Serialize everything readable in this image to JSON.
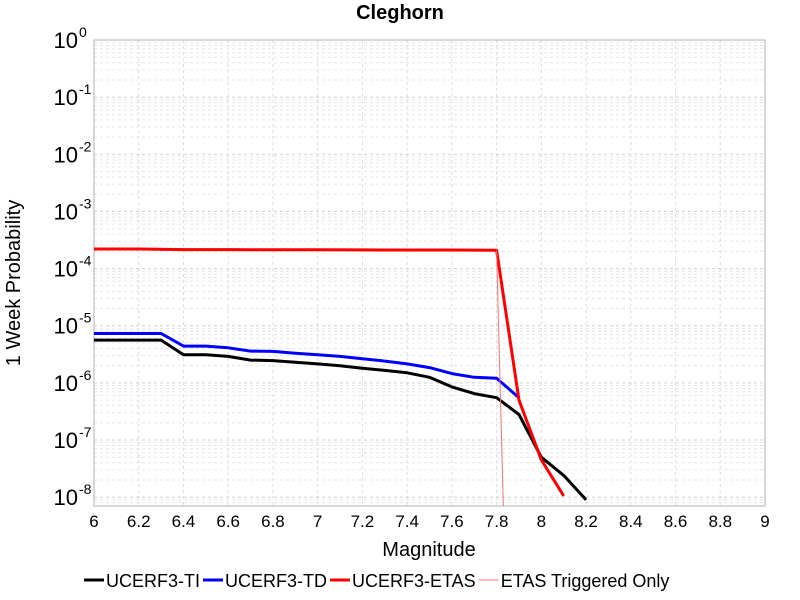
{
  "chart_data": {
    "type": "line",
    "title": "Cleghorn",
    "xlabel": "Magnitude",
    "ylabel": "1 Week Probability",
    "xlim": [
      6,
      9
    ],
    "ylim": [
      7e-09,
      1
    ],
    "yscale": "log",
    "grid": true,
    "legend_placement": "bottom",
    "x_ticks": [
      "6",
      "6.2",
      "6.4",
      "6.6",
      "6.8",
      "7",
      "7.2",
      "7.4",
      "7.6",
      "7.8",
      "8",
      "8.2",
      "8.4",
      "8.6",
      "8.8",
      "9"
    ],
    "y_ticks": [
      {
        "base": "10",
        "exp": "0",
        "value": 1
      },
      {
        "base": "10",
        "exp": "-1",
        "value": 0.1
      },
      {
        "base": "10",
        "exp": "-2",
        "value": 0.01
      },
      {
        "base": "10",
        "exp": "-3",
        "value": 0.001
      },
      {
        "base": "10",
        "exp": "-4",
        "value": 0.0001
      },
      {
        "base": "10",
        "exp": "-5",
        "value": 1e-05
      },
      {
        "base": "10",
        "exp": "-6",
        "value": 1e-06
      },
      {
        "base": "10",
        "exp": "-7",
        "value": 1e-07
      },
      {
        "base": "10",
        "exp": "-8",
        "value": 1e-08
      }
    ],
    "series": [
      {
        "name": "UCERF3-TI",
        "color": "#000000",
        "width": 3,
        "x": [
          6.0,
          6.1,
          6.2,
          6.3,
          6.4,
          6.5,
          6.6,
          6.7,
          6.8,
          6.9,
          7.0,
          7.1,
          7.2,
          7.3,
          7.4,
          7.5,
          7.6,
          7.7,
          7.8,
          7.9,
          8.0,
          8.1,
          8.2
        ],
        "y": [
          5.6e-06,
          5.6e-06,
          5.6e-06,
          5.6e-06,
          3.1e-06,
          3.1e-06,
          2.9e-06,
          2.5e-06,
          2.45e-06,
          2.3e-06,
          2.15e-06,
          2e-06,
          1.8e-06,
          1.65e-06,
          1.5e-06,
          1.25e-06,
          8.5e-07,
          6.5e-07,
          5.5e-07,
          2.8e-07,
          5e-08,
          2.4e-08,
          9e-09
        ]
      },
      {
        "name": "UCERF3-TD",
        "color": "#0000ff",
        "width": 3,
        "x": [
          6.0,
          6.1,
          6.2,
          6.3,
          6.4,
          6.5,
          6.6,
          6.7,
          6.8,
          6.9,
          7.0,
          7.1,
          7.2,
          7.3,
          7.4,
          7.5,
          7.6,
          7.7,
          7.8,
          7.9
        ],
        "y": [
          7.3e-06,
          7.3e-06,
          7.3e-06,
          7.3e-06,
          4.4e-06,
          4.4e-06,
          4.1e-06,
          3.6e-06,
          3.55e-06,
          3.3e-06,
          3.1e-06,
          2.9e-06,
          2.65e-06,
          2.4e-06,
          2.15e-06,
          1.85e-06,
          1.45e-06,
          1.25e-06,
          1.2e-06,
          5.5e-07
        ]
      },
      {
        "name": "UCERF3-ETAS",
        "color": "#ff0000",
        "width": 3,
        "x": [
          6.0,
          6.2,
          6.4,
          6.6,
          6.8,
          7.0,
          7.2,
          7.4,
          7.6,
          7.8,
          7.9,
          8.0,
          8.1
        ],
        "y": [
          0.00022,
          0.00022,
          0.000215,
          0.000215,
          0.000213,
          0.000213,
          0.000212,
          0.000211,
          0.000211,
          0.00021,
          5e-07,
          4.5e-08,
          1.05e-08
        ]
      },
      {
        "name": "ETAS Triggered Only",
        "color": "#ff7070",
        "width": 1,
        "x": [
          7.8,
          7.83
        ],
        "y": [
          0.00021,
          7e-09
        ]
      }
    ]
  }
}
